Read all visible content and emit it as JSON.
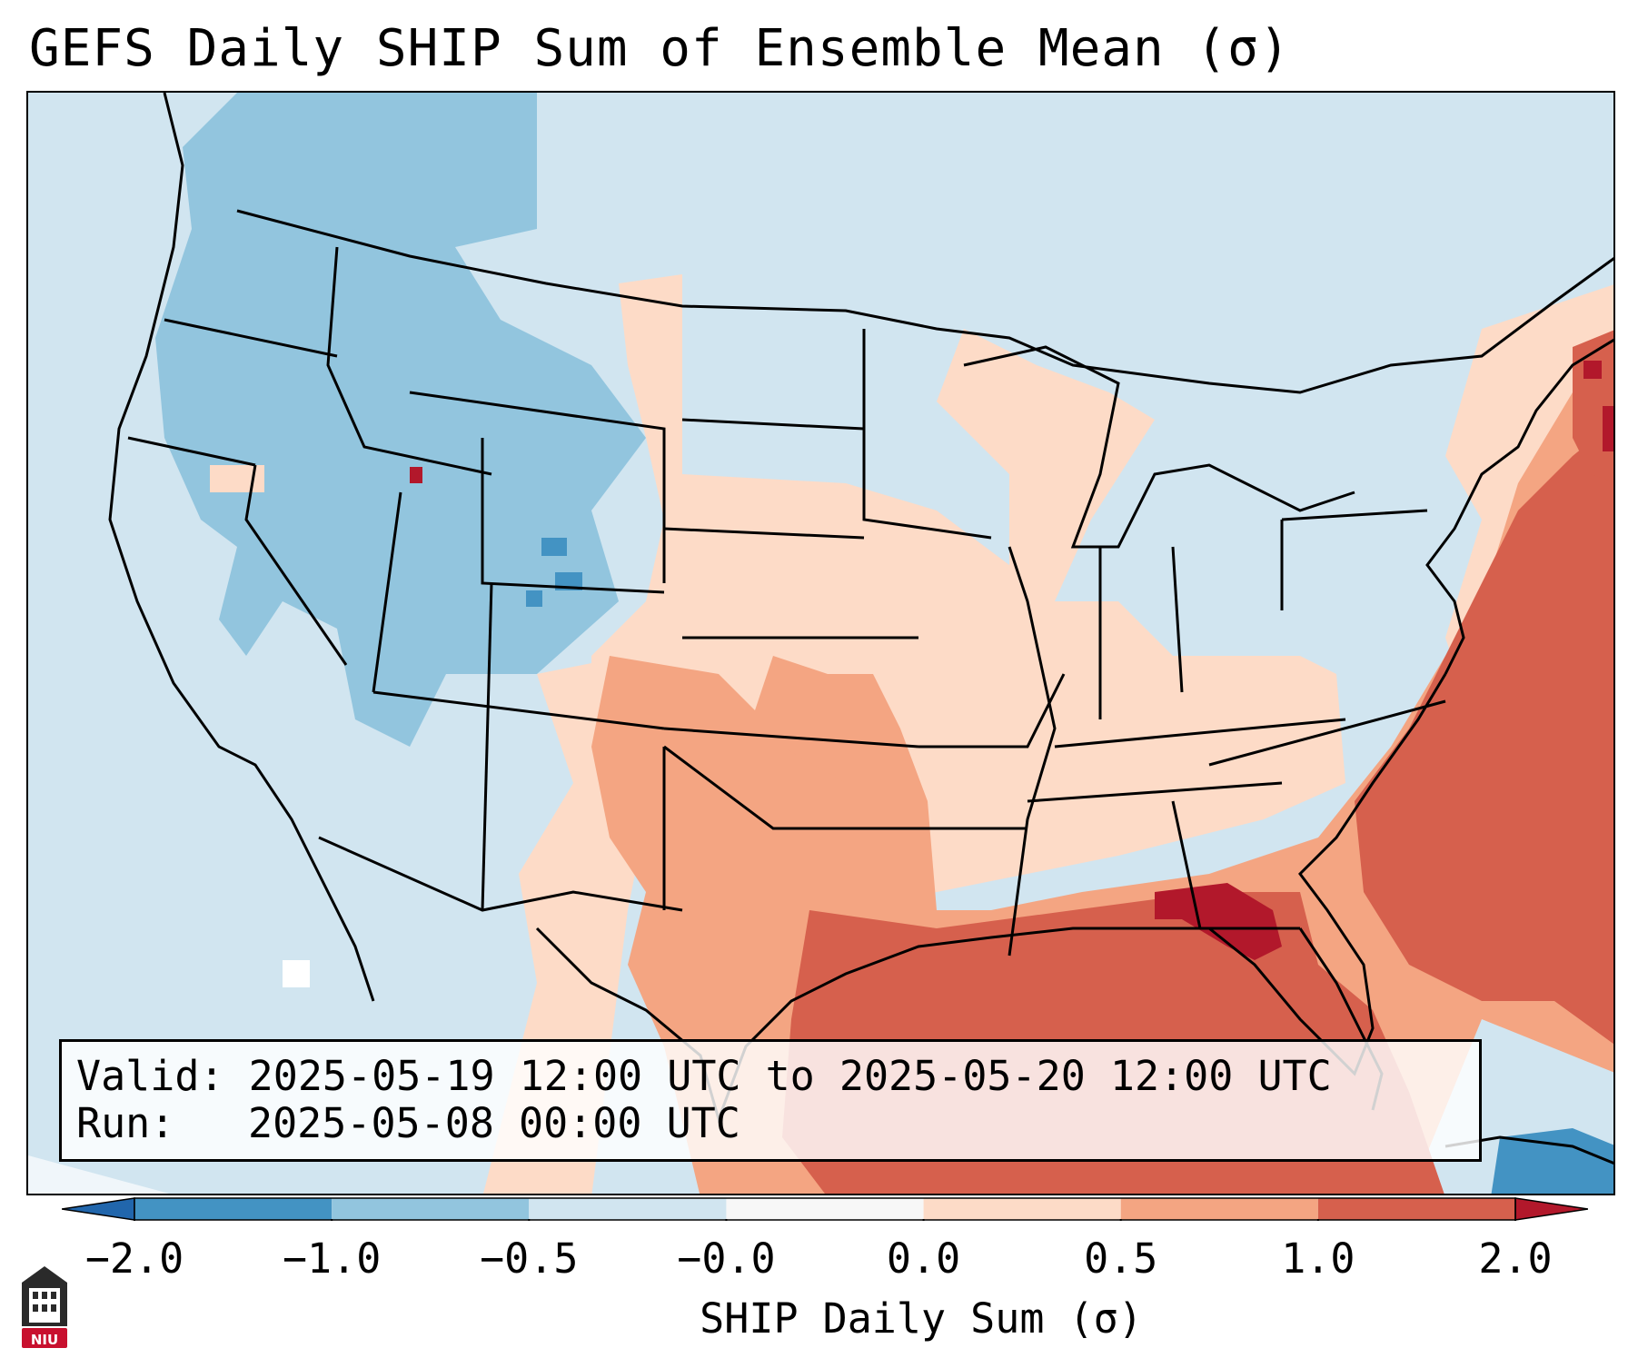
{
  "title": "GEFS Daily SHIP Sum of Ensemble Mean (σ)",
  "info": {
    "valid_label": "Valid:",
    "valid_value": "2025-05-19 12:00 UTC to 2025-05-20 12:00 UTC",
    "run_label": "Run:",
    "run_value": "2025-05-08 00:00 UTC"
  },
  "colorbar": {
    "label": "SHIP Daily Sum (σ)",
    "ticks": [
      "−2.0",
      "−1.0",
      "−0.5",
      "−0.0",
      "0.0",
      "0.5",
      "1.0",
      "2.0"
    ],
    "bins": [
      {
        "range": "< -2.0",
        "color": "#2166ac"
      },
      {
        "range": "-2.0 to -1.0",
        "color": "#4393c3"
      },
      {
        "range": "-1.0 to -0.5",
        "color": "#92c5de"
      },
      {
        "range": "-0.5 to -0.0",
        "color": "#d1e5f0"
      },
      {
        "range": "-0.0 to 0.0",
        "color": "#f7f7f7"
      },
      {
        "range": "0.0 to 0.5",
        "color": "#fddbc7"
      },
      {
        "range": "0.5 to 1.0",
        "color": "#f4a582"
      },
      {
        "range": "1.0 to 2.0",
        "color": "#d6604d"
      },
      {
        "range": "> 2.0",
        "color": "#b2182b"
      }
    ],
    "extend": "both"
  },
  "map": {
    "region": "Contiguous United States",
    "field": "SHIP daily sum, ensemble mean (σ)",
    "pattern": {
      "west_interior": "-1.0 to -0.5 with patches of -2.0 to -1.0 over Colorado/Idaho",
      "plains_midwest": "0.0 to 0.5",
      "texas_gulf_coast": "0.5 to 1.0",
      "gulf_and_southeast_atlantic": "1.0 to 2.0",
      "northern_florida_peak": "> 2.0"
    }
  },
  "logo": {
    "text": "NIU"
  }
}
